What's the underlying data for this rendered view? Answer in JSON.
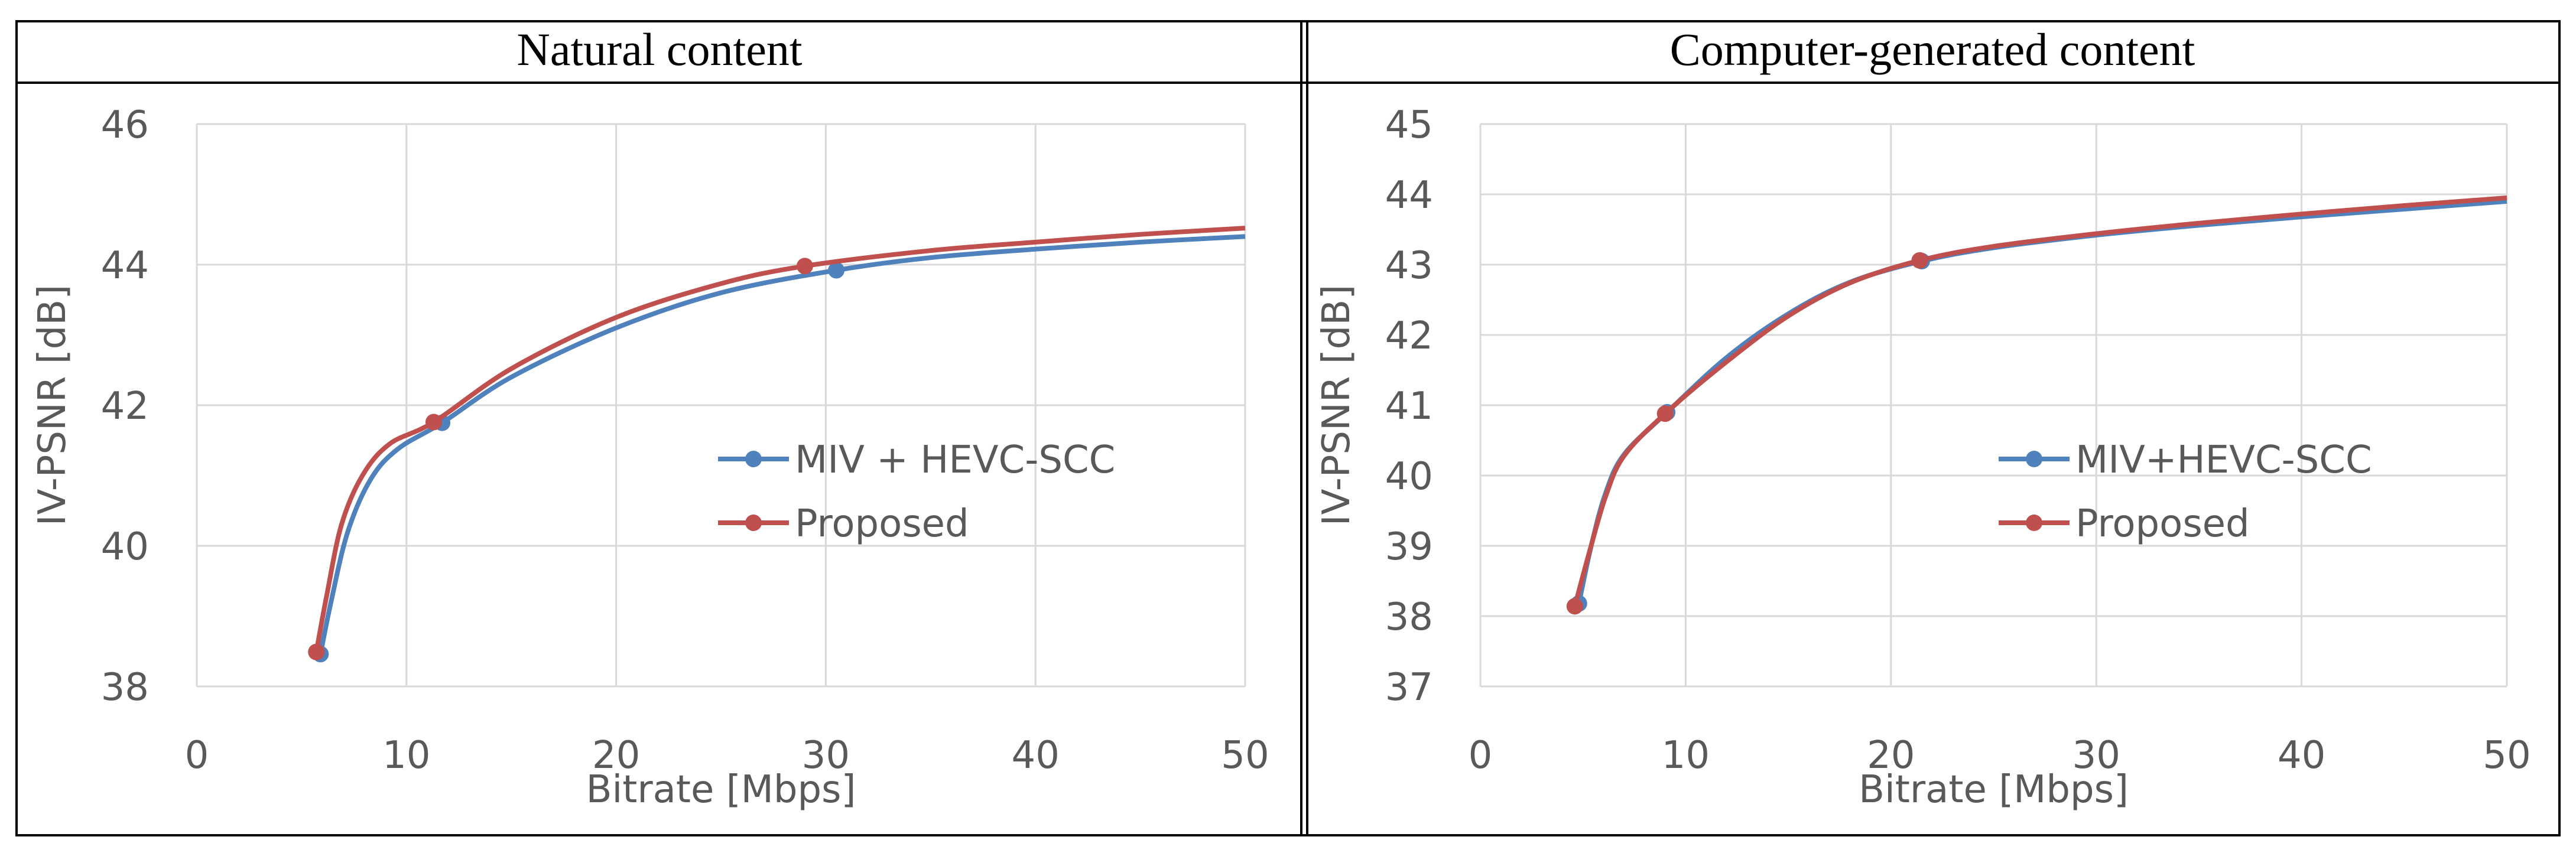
{
  "colors": {
    "blue": "#4F81BD",
    "red": "#C0504D",
    "grid": "#D9D9D9",
    "text": "#595959",
    "border": "#000000"
  },
  "chart_data": [
    {
      "type": "line",
      "panel_title": "Natural content",
      "xlabel": "Bitrate [Mbps]",
      "ylabel": "IV-PSNR [dB]",
      "xlim": [
        0,
        50
      ],
      "ylim": [
        38,
        46
      ],
      "x_ticks": [
        0,
        10,
        20,
        30,
        40,
        50
      ],
      "y_ticks": [
        38,
        40,
        42,
        44,
        46
      ],
      "x_tick_labels": [
        "0",
        "10",
        "20",
        "30",
        "40",
        "50"
      ],
      "y_tick_labels": [
        "38",
        "40",
        "42",
        "44",
        "46"
      ],
      "grid": true,
      "legend_position": "center-right",
      "series": [
        {
          "name": "MIV + HEVC-SCC",
          "color": "#4F81BD",
          "points": [
            [
              5.9,
              38.46
            ],
            [
              11.7,
              41.75
            ],
            [
              30.5,
              43.92
            ]
          ],
          "curve": [
            [
              5.9,
              38.46
            ],
            [
              6.4,
              39.2
            ],
            [
              7.2,
              40.2
            ],
            [
              8.3,
              40.95
            ],
            [
              9.6,
              41.38
            ],
            [
              11.7,
              41.75
            ],
            [
              15,
              42.4
            ],
            [
              20,
              43.1
            ],
            [
              25,
              43.6
            ],
            [
              30.5,
              43.92
            ],
            [
              35,
              44.1
            ],
            [
              40,
              44.22
            ],
            [
              45,
              44.32
            ],
            [
              50,
              44.4
            ]
          ]
        },
        {
          "name": "Proposed",
          "color": "#C0504D",
          "points": [
            [
              5.7,
              38.49
            ],
            [
              11.3,
              41.76
            ],
            [
              29.0,
              43.98
            ]
          ],
          "curve": [
            [
              5.7,
              38.49
            ],
            [
              6.2,
              39.3
            ],
            [
              6.9,
              40.3
            ],
            [
              7.9,
              41.0
            ],
            [
              9.2,
              41.45
            ],
            [
              11.3,
              41.76
            ],
            [
              15,
              42.52
            ],
            [
              20,
              43.25
            ],
            [
              25,
              43.73
            ],
            [
              29.0,
              43.98
            ],
            [
              35,
              44.2
            ],
            [
              40,
              44.32
            ],
            [
              45,
              44.43
            ],
            [
              50,
              44.52
            ]
          ]
        }
      ]
    },
    {
      "type": "line",
      "panel_title": "Computer-generated content",
      "xlabel": "Bitrate [Mbps]",
      "ylabel": "IV-PSNR [dB]",
      "xlim": [
        0,
        50
      ],
      "ylim": [
        37,
        45
      ],
      "x_ticks": [
        0,
        10,
        20,
        30,
        40,
        50
      ],
      "y_ticks": [
        37,
        38,
        39,
        40,
        41,
        42,
        43,
        44,
        45
      ],
      "x_tick_labels": [
        "0",
        "10",
        "20",
        "30",
        "40",
        "50"
      ],
      "y_tick_labels": [
        "37",
        "38",
        "39",
        "40",
        "41",
        "42",
        "43",
        "44",
        "45"
      ],
      "grid": true,
      "legend_position": "center-right",
      "series": [
        {
          "name": "MIV+HEVC-SCC",
          "color": "#4F81BD",
          "points": [
            [
              4.8,
              38.18
            ],
            [
              9.1,
              40.9
            ],
            [
              21.5,
              43.05
            ]
          ],
          "curve": [
            [
              4.8,
              38.18
            ],
            [
              5.4,
              39.0
            ],
            [
              6.1,
              39.75
            ],
            [
              7.0,
              40.3
            ],
            [
              9.1,
              40.9
            ],
            [
              12,
              41.68
            ],
            [
              15,
              42.3
            ],
            [
              18,
              42.75
            ],
            [
              21.5,
              43.05
            ],
            [
              25,
              43.24
            ],
            [
              30,
              43.42
            ],
            [
              35,
              43.56
            ],
            [
              40,
              43.68
            ],
            [
              45,
              43.79
            ],
            [
              50,
              43.9
            ]
          ]
        },
        {
          "name": "Proposed",
          "color": "#C0504D",
          "points": [
            [
              4.6,
              38.14
            ],
            [
              9.0,
              40.88
            ],
            [
              21.4,
              43.06
            ]
          ],
          "curve": [
            [
              4.6,
              38.14
            ],
            [
              5.3,
              38.9
            ],
            [
              6.1,
              39.7
            ],
            [
              7.0,
              40.28
            ],
            [
              9.0,
              40.88
            ],
            [
              12,
              41.62
            ],
            [
              15,
              42.27
            ],
            [
              18,
              42.74
            ],
            [
              21.4,
              43.06
            ],
            [
              25,
              43.26
            ],
            [
              30,
              43.44
            ],
            [
              35,
              43.59
            ],
            [
              40,
              43.72
            ],
            [
              45,
              43.84
            ],
            [
              50,
              43.95
            ]
          ]
        }
      ]
    }
  ]
}
